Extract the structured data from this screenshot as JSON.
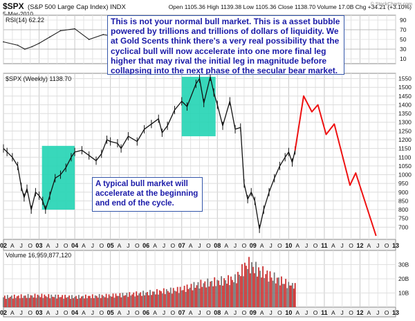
{
  "header": {
    "symbol": "$SPX",
    "name": "(S&P 500 Large Cap Index) INDX",
    "date": "5-Mar-2010",
    "quote": "Open 1105.36  High 1139.38  Low 1105.36  Close 1138.70  Volume 17.0B  Chg +34.21 (+3.10%)",
    "watermark": "© StockCharts.com"
  },
  "rsi_panel": {
    "label": "RSI(14) 62.22",
    "ticks": [
      "90",
      "70",
      "50",
      "30",
      "10"
    ]
  },
  "price_panel": {
    "label": "$SPX (Weekly) 1138.70"
  },
  "volume_panel": {
    "label": "Volume 16,959,877,120",
    "ticks": [
      "30B",
      "20B",
      "10B"
    ]
  },
  "annotations": {
    "top": "This is not your normal bull market. This is a asset bubble powered by trillions and trillions of dollars of liquidity. We at Gold Scents think there's a very real possibility that the cyclical bull will now accelerate into one more final leg higher that may rival the initial leg in magnitude before collapsing into the next phase of the secular bear market.",
    "middle": "A typical bull market will accelerate at the beginning and end of the cycle."
  },
  "colors": {
    "price_bars": "#111111",
    "projection": "#ee1111",
    "highlight": "#22d4b4",
    "note_text": "#1a1aa8",
    "volume_bars": "#cc3333",
    "rsi_line": "#222222"
  },
  "chart_data": [
    {
      "type": "line",
      "title": "$SPX (Weekly) 1138.70",
      "x_ticks": [
        "02",
        "A",
        "J",
        "O",
        "03",
        "A",
        "J",
        "O",
        "04",
        "A",
        "J",
        "O",
        "05",
        "A",
        "J",
        "O",
        "06",
        "A",
        "J",
        "O",
        "07",
        "A",
        "J",
        "O",
        "08",
        "A",
        "J",
        "O",
        "09",
        "A",
        "J",
        "O",
        "10",
        "A",
        "J",
        "O",
        "11",
        "A",
        "J",
        "O",
        "12",
        "A",
        "J",
        "O",
        "13"
      ],
      "y_ticks": [
        700,
        750,
        800,
        850,
        900,
        950,
        1000,
        1050,
        1100,
        1150,
        1200,
        1250,
        1300,
        1350,
        1400,
        1450,
        1500,
        1550
      ],
      "ylim": [
        630,
        1580
      ],
      "xlim": [
        2002.0,
        2013.0
      ],
      "series": [
        {
          "color": "black",
          "points": [
            [
              2002.0,
              1150
            ],
            [
              2002.1,
              1130
            ],
            [
              2002.25,
              1100
            ],
            [
              2002.4,
              1050
            ],
            [
              2002.5,
              930
            ],
            [
              2002.58,
              870
            ],
            [
              2002.66,
              920
            ],
            [
              2002.78,
              800
            ],
            [
              2002.9,
              900
            ],
            [
              2003.0,
              880
            ],
            [
              2003.1,
              850
            ],
            [
              2003.18,
              800
            ],
            [
              2003.3,
              880
            ],
            [
              2003.45,
              980
            ],
            [
              2003.6,
              1000
            ],
            [
              2003.75,
              1040
            ],
            [
              2003.9,
              1100
            ],
            [
              2004.0,
              1130
            ],
            [
              2004.2,
              1140
            ],
            [
              2004.4,
              1110
            ],
            [
              2004.6,
              1080
            ],
            [
              2004.75,
              1120
            ],
            [
              2004.9,
              1200
            ],
            [
              2005.0,
              1190
            ],
            [
              2005.2,
              1180
            ],
            [
              2005.3,
              1150
            ],
            [
              2005.5,
              1220
            ],
            [
              2005.75,
              1190
            ],
            [
              2005.95,
              1260
            ],
            [
              2006.15,
              1290
            ],
            [
              2006.35,
              1320
            ],
            [
              2006.45,
              1240
            ],
            [
              2006.6,
              1280
            ],
            [
              2006.8,
              1370
            ],
            [
              2007.0,
              1420
            ],
            [
              2007.15,
              1390
            ],
            [
              2007.4,
              1520
            ],
            [
              2007.5,
              1550
            ],
            [
              2007.62,
              1410
            ],
            [
              2007.8,
              1560
            ],
            [
              2007.9,
              1470
            ],
            [
              2008.0,
              1400
            ],
            [
              2008.15,
              1280
            ],
            [
              2008.35,
              1420
            ],
            [
              2008.5,
              1260
            ],
            [
              2008.65,
              1270
            ],
            [
              2008.75,
              950
            ],
            [
              2008.85,
              860
            ],
            [
              2008.95,
              900
            ],
            [
              2009.05,
              850
            ],
            [
              2009.18,
              690
            ],
            [
              2009.3,
              800
            ],
            [
              2009.45,
              900
            ],
            [
              2009.6,
              980
            ],
            [
              2009.75,
              1050
            ],
            [
              2009.9,
              1100
            ],
            [
              2010.0,
              1130
            ],
            [
              2010.1,
              1070
            ],
            [
              2010.18,
              1138.7
            ]
          ]
        },
        {
          "color": "red",
          "points": [
            [
              2010.18,
              1138.7
            ],
            [
              2010.42,
              1450
            ],
            [
              2010.65,
              1360
            ],
            [
              2010.82,
              1400
            ],
            [
              2011.05,
              1230
            ],
            [
              2011.28,
              1290
            ],
            [
              2011.72,
              940
            ],
            [
              2011.88,
              1010
            ],
            [
              2012.45,
              650
            ]
          ]
        }
      ],
      "highlights": [
        {
          "x0": 2003.08,
          "x1": 2004.0,
          "y0": 800,
          "y1": 1165
        },
        {
          "x0": 2007.0,
          "x1": 2007.95,
          "y0": 1220,
          "y1": 1560
        }
      ]
    },
    {
      "type": "line",
      "title": "RSI(14) 62.22",
      "ylim": [
        0,
        100
      ],
      "y_ticks": [
        90,
        70,
        50,
        30,
        10
      ],
      "x": [
        2002.0,
        2002.4,
        2002.6,
        2002.8,
        2003.0,
        2003.3,
        2003.6,
        2004.0,
        2004.4,
        2004.8,
        2005.2,
        2005.6,
        2006.0,
        2006.4,
        2006.8,
        2007.2,
        2007.6,
        2008.0,
        2008.4,
        2008.8,
        2009.2,
        2009.6,
        2010.0,
        2010.18
      ],
      "values": [
        45,
        38,
        30,
        35,
        42,
        55,
        68,
        72,
        50,
        60,
        55,
        58,
        62,
        48,
        60,
        65,
        58,
        42,
        50,
        28,
        38,
        72,
        60,
        62.22
      ]
    },
    {
      "type": "bar",
      "title": "Volume 16,959,877,120",
      "ylim": [
        0,
        40
      ],
      "y_ticks": [
        "30B",
        "20B",
        "10B"
      ],
      "x": [
        2002.0,
        2003.0,
        2004.0,
        2005.0,
        2006.0,
        2007.0,
        2007.5,
        2008.0,
        2008.5,
        2008.85,
        2009.2,
        2009.6,
        2010.0,
        2010.18
      ],
      "values": [
        8,
        9,
        8,
        9,
        11,
        14,
        18,
        20,
        22,
        34,
        28,
        23,
        18,
        17
      ]
    }
  ]
}
